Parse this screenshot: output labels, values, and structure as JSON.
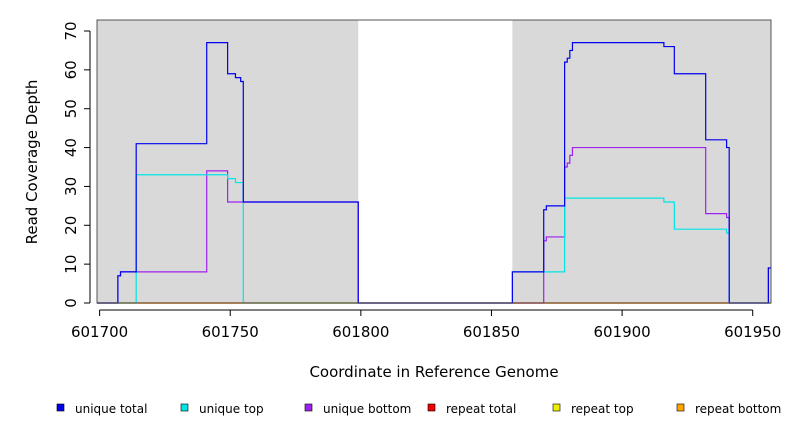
{
  "chart_data": {
    "type": "line",
    "line_style": "step",
    "xlabel": "Coordinate in Reference Genome",
    "ylabel": "Read Coverage Depth",
    "xlim": [
      601699,
      601957
    ],
    "ylim": [
      0,
      72
    ],
    "x_ticks": [
      601700,
      601750,
      601800,
      601850,
      601900,
      601950
    ],
    "y_ticks": [
      0,
      10,
      20,
      30,
      40,
      50,
      60,
      70
    ],
    "grid": false,
    "legend_position": "bottom",
    "shaded_regions": [
      {
        "x": [
          601699,
          601799
        ],
        "color": "#d9d9d9"
      },
      {
        "x": [
          601858,
          601957
        ],
        "color": "#d9d9d9"
      }
    ],
    "series": [
      {
        "name": "unique total",
        "color": "#0000ee",
        "points": [
          [
            601699,
            0
          ],
          [
            601707,
            0
          ],
          [
            601707,
            7
          ],
          [
            601708,
            7
          ],
          [
            601708,
            8
          ],
          [
            601714,
            8
          ],
          [
            601714,
            41
          ],
          [
            601741,
            41
          ],
          [
            601741,
            67
          ],
          [
            601749,
            67
          ],
          [
            601749,
            59
          ],
          [
            601752,
            59
          ],
          [
            601752,
            58
          ],
          [
            601754,
            58
          ],
          [
            601754,
            57
          ],
          [
            601755,
            57
          ],
          [
            601755,
            26
          ],
          [
            601799,
            26
          ],
          [
            601799,
            0
          ],
          [
            601858,
            0
          ],
          [
            601858,
            8
          ],
          [
            601870,
            8
          ],
          [
            601870,
            24
          ],
          [
            601871,
            24
          ],
          [
            601871,
            25
          ],
          [
            601878,
            25
          ],
          [
            601878,
            62
          ],
          [
            601879,
            62
          ],
          [
            601879,
            63
          ],
          [
            601880,
            63
          ],
          [
            601880,
            65
          ],
          [
            601881,
            65
          ],
          [
            601881,
            67
          ],
          [
            601916,
            67
          ],
          [
            601916,
            66
          ],
          [
            601920,
            66
          ],
          [
            601920,
            59
          ],
          [
            601932,
            59
          ],
          [
            601932,
            42
          ],
          [
            601940,
            42
          ],
          [
            601940,
            40
          ],
          [
            601941,
            40
          ],
          [
            601941,
            0
          ],
          [
            601956,
            0
          ],
          [
            601956,
            9
          ],
          [
            601957,
            9
          ]
        ]
      },
      {
        "name": "unique top",
        "color": "#00e5e5",
        "points": [
          [
            601699,
            0
          ],
          [
            601714,
            0
          ],
          [
            601714,
            33
          ],
          [
            601749,
            33
          ],
          [
            601749,
            32
          ],
          [
            601752,
            32
          ],
          [
            601752,
            31
          ],
          [
            601755,
            31
          ],
          [
            601755,
            0
          ],
          [
            601799,
            0
          ],
          [
            601858,
            0
          ],
          [
            601858,
            8
          ],
          [
            601878,
            8
          ],
          [
            601878,
            27
          ],
          [
            601916,
            27
          ],
          [
            601916,
            26
          ],
          [
            601920,
            26
          ],
          [
            601920,
            19
          ],
          [
            601940,
            19
          ],
          [
            601940,
            18
          ],
          [
            601941,
            18
          ],
          [
            601941,
            0
          ],
          [
            601957,
            0
          ]
        ]
      },
      {
        "name": "unique bottom",
        "color": "#a020f0",
        "points": [
          [
            601699,
            0
          ],
          [
            601707,
            0
          ],
          [
            601707,
            7
          ],
          [
            601708,
            7
          ],
          [
            601708,
            8
          ],
          [
            601741,
            8
          ],
          [
            601741,
            34
          ],
          [
            601749,
            34
          ],
          [
            601749,
            26
          ],
          [
            601755,
            26
          ],
          [
            601799,
            26
          ],
          [
            601799,
            0
          ],
          [
            601870,
            0
          ],
          [
            601870,
            16
          ],
          [
            601871,
            16
          ],
          [
            601871,
            17
          ],
          [
            601878,
            17
          ],
          [
            601878,
            35
          ],
          [
            601879,
            35
          ],
          [
            601879,
            36
          ],
          [
            601880,
            36
          ],
          [
            601880,
            38
          ],
          [
            601881,
            38
          ],
          [
            601881,
            40
          ],
          [
            601932,
            40
          ],
          [
            601932,
            23
          ],
          [
            601940,
            23
          ],
          [
            601940,
            22
          ],
          [
            601941,
            22
          ],
          [
            601941,
            0
          ],
          [
            601956,
            0
          ],
          [
            601956,
            9
          ],
          [
            601957,
            9
          ]
        ]
      },
      {
        "name": "repeat total",
        "color": "#ee0000",
        "points": [
          [
            601699,
            0
          ],
          [
            601957,
            0
          ]
        ]
      },
      {
        "name": "repeat top",
        "color": "#eeee00",
        "points": [
          [
            601699,
            0
          ],
          [
            601957,
            0
          ]
        ]
      },
      {
        "name": "repeat bottom",
        "color": "#ffa500",
        "points": [
          [
            601699,
            0
          ],
          [
            601941,
            0
          ]
        ]
      }
    ]
  }
}
